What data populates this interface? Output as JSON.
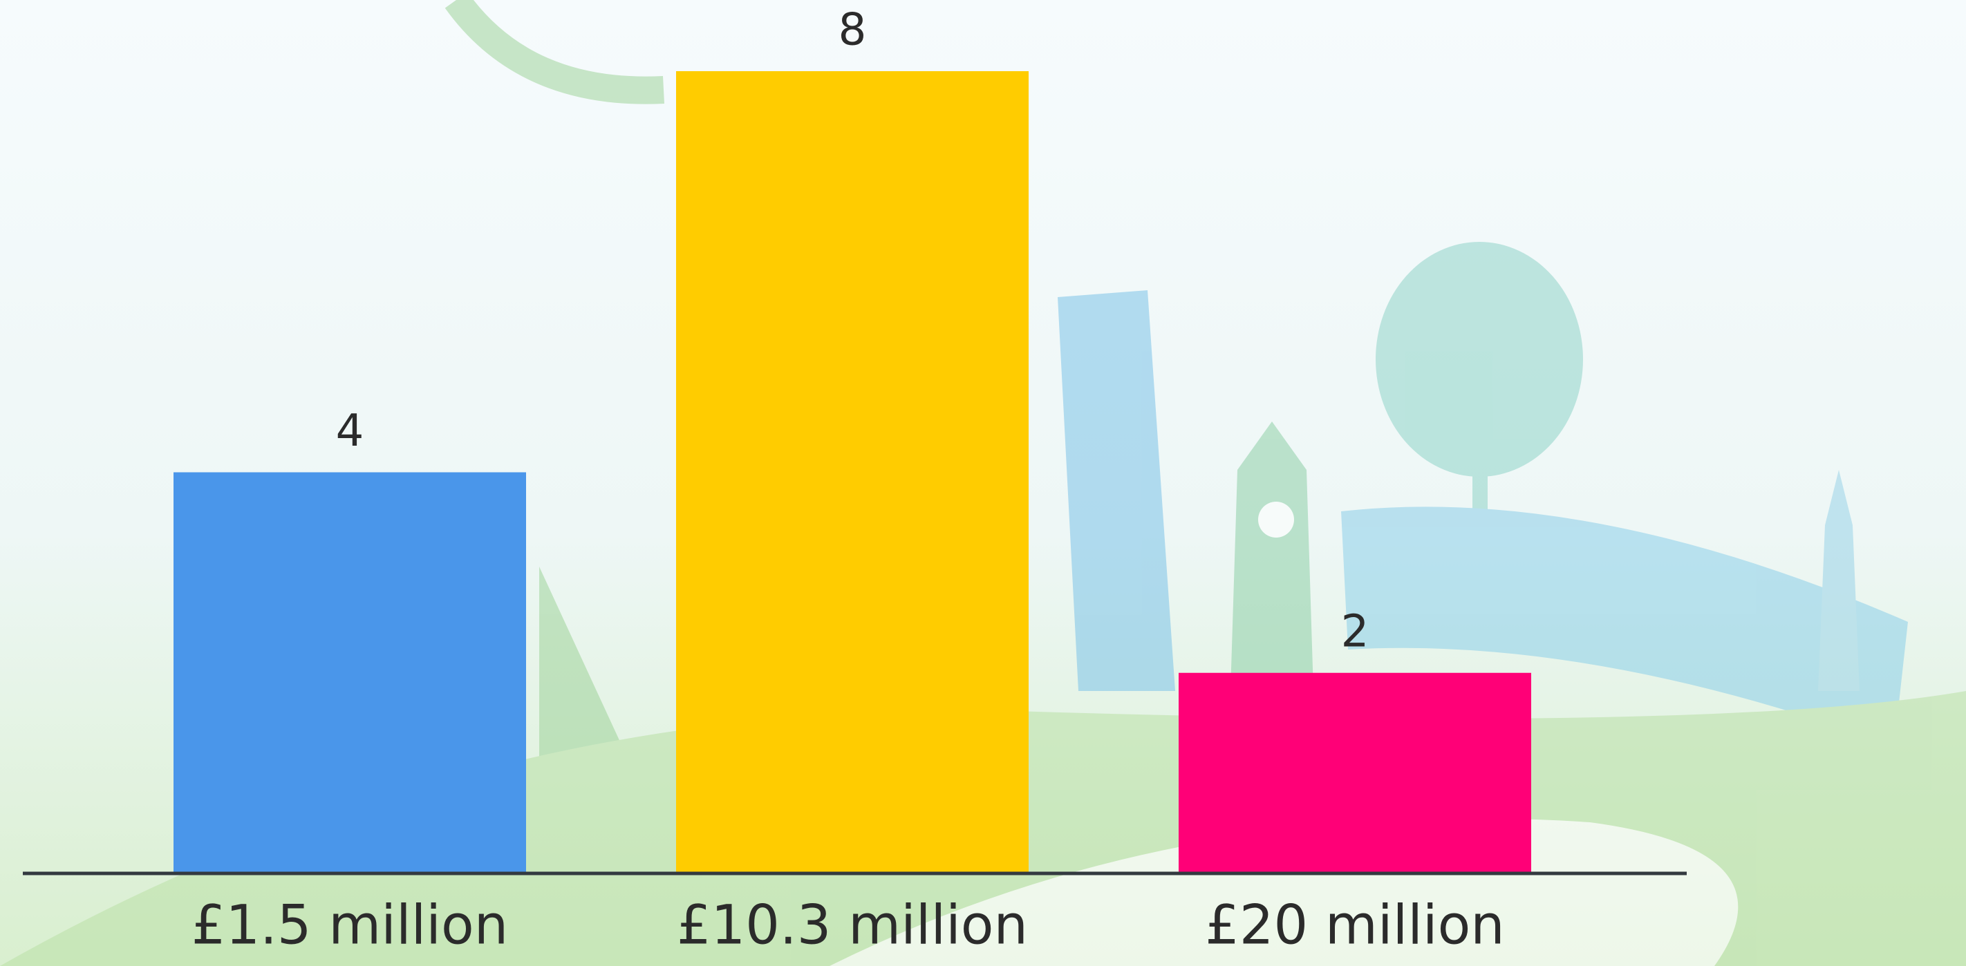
{
  "chart_data": {
    "type": "bar",
    "categories": [
      "£1.5 million",
      "£10.3 million",
      "£20 million"
    ],
    "values": [
      4,
      8,
      2
    ],
    "colors": [
      "#4a96ea",
      "#ffcc00",
      "#ff0077"
    ]
  }
}
